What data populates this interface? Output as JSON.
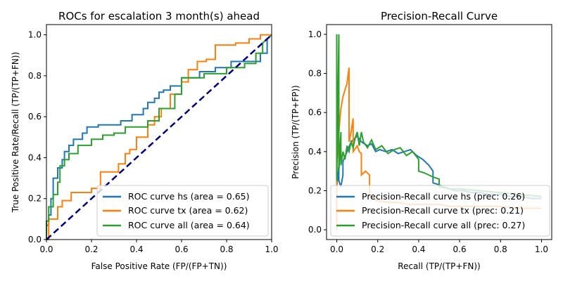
{
  "chart_data": [
    {
      "type": "line",
      "title": "ROCs for escalation 3 month(s) ahead",
      "xlabel": "False Positive Rate (FP/(FP+TN))",
      "ylabel": "True Positive Rate/Recall (TP/(TP+FN))",
      "xlim": [
        0,
        1
      ],
      "ylim": [
        0,
        1.05
      ],
      "xticks": [
        "0.0",
        "0.2",
        "0.4",
        "0.6",
        "0.8",
        "1.0"
      ],
      "yticks": [
        "0.0",
        "0.2",
        "0.4",
        "0.6",
        "0.8",
        "1.0"
      ],
      "legend_position": "lower-right",
      "grid": false,
      "series": [
        {
          "name": "ROC curve hs (area = 0.65)",
          "color": "#1f77b4",
          "x": [
            0,
            0,
            0.01,
            0.01,
            0.02,
            0.02,
            0.03,
            0.03,
            0.05,
            0.05,
            0.07,
            0.07,
            0.08,
            0.08,
            0.1,
            0.1,
            0.12,
            0.12,
            0.16,
            0.16,
            0.18,
            0.18,
            0.2,
            0.2,
            0.23,
            0.23,
            0.25,
            0.25,
            0.33,
            0.33,
            0.38,
            0.38,
            0.43,
            0.43,
            0.45,
            0.45,
            0.48,
            0.48,
            0.5,
            0.5,
            0.52,
            0.52,
            0.55,
            0.55,
            0.6,
            0.6,
            0.68,
            0.68,
            0.75,
            0.75,
            0.82,
            0.82,
            0.88,
            0.88,
            0.95,
            0.95,
            0.98,
            0.98,
            1.0
          ],
          "y": [
            0,
            0.07,
            0.07,
            0.12,
            0.12,
            0.2,
            0.2,
            0.3,
            0.3,
            0.35,
            0.35,
            0.39,
            0.39,
            0.43,
            0.43,
            0.46,
            0.46,
            0.49,
            0.49,
            0.52,
            0.52,
            0.55,
            0.55,
            0.55,
            0.55,
            0.56,
            0.56,
            0.56,
            0.56,
            0.58,
            0.58,
            0.61,
            0.61,
            0.64,
            0.64,
            0.67,
            0.67,
            0.69,
            0.69,
            0.72,
            0.72,
            0.73,
            0.73,
            0.75,
            0.75,
            0.79,
            0.79,
            0.82,
            0.82,
            0.84,
            0.84,
            0.87,
            0.87,
            0.87,
            0.87,
            0.91,
            0.91,
            0.98,
            1.0
          ]
        },
        {
          "name": "ROC curve tx (area = 0.62)",
          "color": "#ff7f0e",
          "x": [
            0,
            0.01,
            0.01,
            0.05,
            0.05,
            0.07,
            0.07,
            0.11,
            0.11,
            0.2,
            0.2,
            0.24,
            0.24,
            0.32,
            0.32,
            0.35,
            0.35,
            0.37,
            0.37,
            0.4,
            0.4,
            0.45,
            0.45,
            0.48,
            0.48,
            0.51,
            0.51,
            0.55,
            0.55,
            0.6,
            0.6,
            0.63,
            0.63,
            0.67,
            0.67,
            0.71,
            0.71,
            0.75,
            0.75,
            0.84,
            0.84,
            0.9,
            0.9,
            0.95,
            0.95,
            1.0
          ],
          "y": [
            0,
            0,
            0.1,
            0.1,
            0.16,
            0.16,
            0.19,
            0.19,
            0.23,
            0.23,
            0.25,
            0.25,
            0.33,
            0.33,
            0.37,
            0.37,
            0.42,
            0.42,
            0.44,
            0.44,
            0.5,
            0.5,
            0.56,
            0.56,
            0.6,
            0.6,
            0.64,
            0.64,
            0.71,
            0.71,
            0.77,
            0.77,
            0.83,
            0.83,
            0.87,
            0.87,
            0.88,
            0.88,
            0.95,
            0.95,
            0.96,
            0.96,
            0.98,
            0.98,
            1.0,
            1.0
          ]
        },
        {
          "name": "ROC curve all (area = 0.64)",
          "color": "#2ca02c",
          "x": [
            0,
            0,
            0.01,
            0.01,
            0.03,
            0.03,
            0.05,
            0.05,
            0.06,
            0.06,
            0.08,
            0.08,
            0.1,
            0.1,
            0.14,
            0.14,
            0.2,
            0.2,
            0.25,
            0.25,
            0.3,
            0.3,
            0.35,
            0.35,
            0.45,
            0.45,
            0.5,
            0.5,
            0.57,
            0.57,
            0.6,
            0.6,
            0.7,
            0.7,
            0.8,
            0.8,
            0.88,
            0.88,
            0.93,
            0.93,
            0.96,
            0.96,
            1.0
          ],
          "y": [
            0,
            0.09,
            0.09,
            0.16,
            0.16,
            0.22,
            0.22,
            0.28,
            0.28,
            0.36,
            0.36,
            0.39,
            0.39,
            0.42,
            0.42,
            0.46,
            0.46,
            0.49,
            0.49,
            0.51,
            0.51,
            0.52,
            0.52,
            0.55,
            0.55,
            0.58,
            0.58,
            0.64,
            0.64,
            0.71,
            0.71,
            0.79,
            0.79,
            0.81,
            0.81,
            0.84,
            0.84,
            0.86,
            0.86,
            0.91,
            0.91,
            0.96,
            1.0
          ]
        },
        {
          "name": "",
          "color": "#000080",
          "dashed": true,
          "x": [
            0,
            1
          ],
          "y": [
            0,
            1
          ]
        }
      ]
    },
    {
      "type": "line",
      "title": "Precision-Recall Curve",
      "xlabel": "Recall (TP/(TP+FN))",
      "ylabel": "Precision (TP/(TP+FP))",
      "xlim": [
        -0.05,
        1.05
      ],
      "ylim": [
        -0.05,
        1.05
      ],
      "xticks": [
        "0.0",
        "0.2",
        "0.4",
        "0.6",
        "0.8",
        "1.0"
      ],
      "yticks": [
        "0.0",
        "0.2",
        "0.4",
        "0.6",
        "0.8",
        "1.0"
      ],
      "legend_position": "lower-left",
      "grid": false,
      "series": [
        {
          "name": "Precision-Recall curve hs (prec: 0.26)",
          "color": "#1f77b4",
          "x": [
            0.0,
            0.0,
            0.01,
            0.01,
            0.02,
            0.03,
            0.03,
            0.05,
            0.07,
            0.1,
            0.12,
            0.15,
            0.17,
            0.19,
            0.21,
            0.24,
            0.27,
            0.3,
            0.33,
            0.36,
            0.39,
            0.42,
            0.45,
            0.47,
            0.47,
            0.5,
            0.52,
            0.55,
            0.58,
            0.62,
            0.66,
            0.7,
            0.75,
            0.8,
            0.85,
            0.9,
            0.95,
            1.0
          ],
          "y": [
            1.0,
            0.22,
            0.33,
            0.25,
            0.22,
            0.28,
            0.35,
            0.4,
            0.45,
            0.48,
            0.45,
            0.43,
            0.44,
            0.4,
            0.41,
            0.4,
            0.41,
            0.39,
            0.4,
            0.41,
            0.38,
            0.36,
            0.33,
            0.3,
            0.24,
            0.23,
            0.22,
            0.21,
            0.2,
            0.2,
            0.19,
            0.19,
            0.18,
            0.18,
            0.17,
            0.17,
            0.16,
            0.16
          ]
        },
        {
          "name": "Precision-Recall curve tx (prec: 0.21)",
          "color": "#ff7f0e",
          "x": [
            0.0,
            0.0,
            0.01,
            0.02,
            0.03,
            0.05,
            0.06,
            0.06,
            0.07,
            0.08,
            0.08,
            0.1,
            0.11,
            0.12,
            0.12,
            0.14,
            0.16,
            0.16,
            0.2,
            0.25,
            0.3,
            0.35,
            0.4,
            0.45,
            0.5,
            0.55,
            0.6,
            0.7,
            0.8,
            0.9,
            1.0
          ],
          "y": [
            0.0,
            0.33,
            0.5,
            0.62,
            0.68,
            0.75,
            0.83,
            0.45,
            0.5,
            0.57,
            0.4,
            0.43,
            0.4,
            0.39,
            0.28,
            0.3,
            0.28,
            0.17,
            0.15,
            0.14,
            0.14,
            0.13,
            0.13,
            0.13,
            0.13,
            0.12,
            0.12,
            0.12,
            0.12,
            0.11,
            0.11
          ]
        },
        {
          "name": "Precision-Recall curve all (prec: 0.27)",
          "color": "#2ca02c",
          "x": [
            0.0,
            0.0,
            0.01,
            0.01,
            0.02,
            0.02,
            0.03,
            0.04,
            0.05,
            0.06,
            0.07,
            0.08,
            0.09,
            0.1,
            0.11,
            0.12,
            0.13,
            0.15,
            0.17,
            0.19,
            0.22,
            0.25,
            0.28,
            0.31,
            0.34,
            0.37,
            0.4,
            0.4,
            0.43,
            0.47,
            0.5,
            0.5,
            0.55,
            0.6,
            0.7,
            0.8,
            0.9,
            1.0
          ],
          "y": [
            1.0,
            0.25,
            1.0,
            0.3,
            0.5,
            0.33,
            0.4,
            0.36,
            0.43,
            0.4,
            0.45,
            0.42,
            0.47,
            0.5,
            0.43,
            0.5,
            0.45,
            0.42,
            0.46,
            0.41,
            0.43,
            0.39,
            0.41,
            0.42,
            0.38,
            0.4,
            0.36,
            0.3,
            0.29,
            0.27,
            0.26,
            0.22,
            0.21,
            0.21,
            0.2,
            0.19,
            0.18,
            0.17
          ]
        }
      ]
    }
  ]
}
